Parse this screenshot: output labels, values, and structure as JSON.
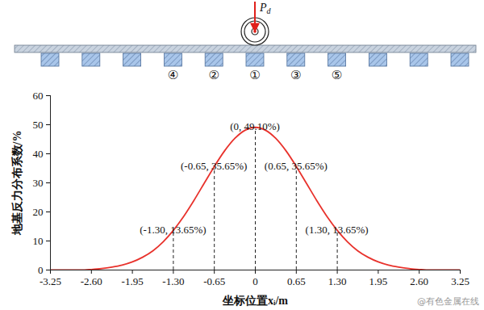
{
  "chart_data": {
    "type": "line",
    "xlabel": "坐标位置xᵢ/m",
    "ylabel": "地基反力分布系数/%",
    "x": [
      -3.25,
      -3.0875,
      -2.925,
      -2.7625,
      -2.6,
      -2.4375,
      -2.275,
      -2.1125,
      -1.95,
      -1.7875,
      -1.625,
      -1.4625,
      -1.3,
      -1.1375,
      -0.975,
      -0.8125,
      -0.65,
      -0.4875,
      -0.325,
      -0.1625,
      0,
      0.1625,
      0.325,
      0.4875,
      0.65,
      0.8125,
      0.975,
      1.1375,
      1.3,
      1.4625,
      1.625,
      1.7875,
      1.95,
      2.1125,
      2.275,
      2.4375,
      2.6,
      2.7625,
      2.925,
      3.0875,
      3.25
    ],
    "values": [
      0,
      0,
      0,
      0,
      0.2,
      0.5,
      1.0,
      1.7,
      2.8,
      4.4,
      6.6,
      9.7,
      13.65,
      18.4,
      23.9,
      29.8,
      35.65,
      41.0,
      45.3,
      48.1,
      49.1,
      48.1,
      45.3,
      41.0,
      35.65,
      29.8,
      23.9,
      18.4,
      13.65,
      9.7,
      6.6,
      4.4,
      2.8,
      1.7,
      1.0,
      0.5,
      0.2,
      0,
      0,
      0,
      0
    ],
    "color": "#e8322c",
    "xlim": [
      -3.25,
      3.25
    ],
    "xticks": [
      -3.25,
      {
        "value": -2.6,
        "label": "-2.60"
      },
      -1.95,
      {
        "value": -1.3,
        "label": "-1.30"
      },
      -0.65,
      0,
      0.65,
      {
        "value": 1.3,
        "label": "1.30"
      },
      1.95,
      {
        "value": 2.6,
        "label": "2.60"
      },
      3.25
    ],
    "ylim": [
      0,
      60
    ],
    "yticks": [
      0,
      10,
      20,
      30,
      40,
      50,
      60
    ],
    "annotations": [
      {
        "x": -1.3,
        "y": 13.65,
        "label": "(-1.30, 13.65%)"
      },
      {
        "x": -0.65,
        "y": 35.65,
        "label": "(-0.65, 35.65%)"
      },
      {
        "x": 0,
        "y": 49.1,
        "label": "(0, 49.10%)"
      },
      {
        "x": 0.65,
        "y": 35.65,
        "label": "(0.65, 35.65%)"
      },
      {
        "x": 1.3,
        "y": 13.65,
        "label": "(1.30, 13.65%)"
      }
    ],
    "diagram": {
      "load": {
        "main": "P",
        "sub": "d"
      },
      "sleeper_labels": [
        {
          "x": -1.3,
          "label": "④"
        },
        {
          "x": -0.65,
          "label": "②"
        },
        {
          "x": 0,
          "label": "①"
        },
        {
          "x": 0.65,
          "label": "③"
        },
        {
          "x": 1.3,
          "label": "⑤"
        }
      ]
    },
    "watermark": "@有色金属在线"
  }
}
